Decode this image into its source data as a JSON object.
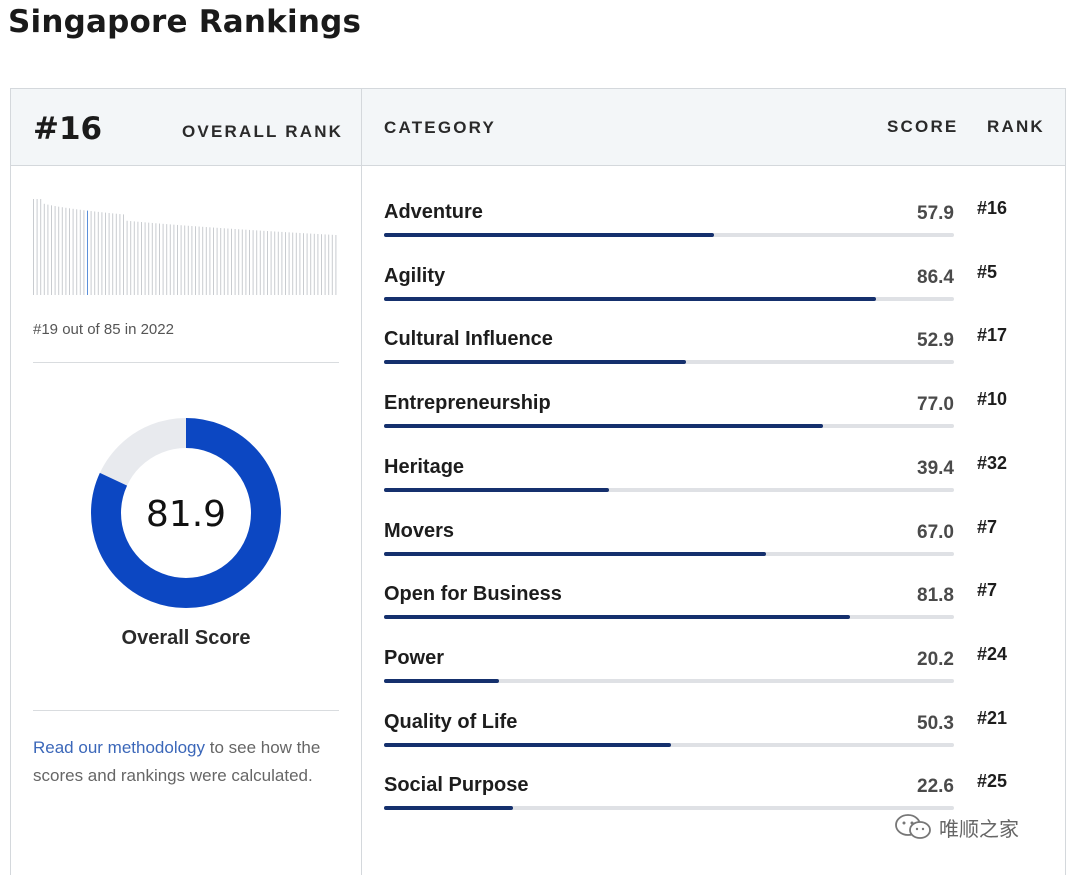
{
  "page_title": "Singapore Rankings",
  "header": {
    "rank": "#16",
    "overall_rank_label": "OVERALL RANK",
    "category_label": "CATEGORY",
    "score_label": "SCORE",
    "rank_label": "RANK"
  },
  "left": {
    "previous_rank_text": "#19 out of 85 in 2022",
    "mini_chart": {
      "count": 85,
      "highlight_index": 16,
      "colors": {
        "bar": "#c9ccd0",
        "highlight": "#5b8fd9"
      }
    },
    "overall_score": {
      "value": 81.9,
      "display": "81.9",
      "label": "Overall Score",
      "colors": {
        "fill": "#0c47c2",
        "track": "#e8eaee"
      }
    },
    "methodology": {
      "link_text": "Read our methodology",
      "rest_text": " to see how the scores and rankings were calculated."
    }
  },
  "categories": [
    {
      "name": "Adventure",
      "score": "57.9",
      "value": 57.9,
      "rank": "#16"
    },
    {
      "name": "Agility",
      "score": "86.4",
      "value": 86.4,
      "rank": "#5"
    },
    {
      "name": "Cultural Influence",
      "score": "52.9",
      "value": 52.9,
      "rank": "#17"
    },
    {
      "name": "Entrepreneurship",
      "score": "77.0",
      "value": 77.0,
      "rank": "#10"
    },
    {
      "name": "Heritage",
      "score": "39.4",
      "value": 39.4,
      "rank": "#32"
    },
    {
      "name": "Movers",
      "score": "67.0",
      "value": 67.0,
      "rank": "#7"
    },
    {
      "name": "Open for Business",
      "score": "81.8",
      "value": 81.8,
      "rank": "#7"
    },
    {
      "name": "Power",
      "score": "20.2",
      "value": 20.2,
      "rank": "#24"
    },
    {
      "name": "Quality of Life",
      "score": "50.3",
      "value": 50.3,
      "rank": "#21"
    },
    {
      "name": "Social Purpose",
      "score": "22.6",
      "value": 22.6,
      "rank": "#25"
    }
  ],
  "watermark": {
    "text": "唯顺之家",
    "icon": "wechat-icon"
  }
}
